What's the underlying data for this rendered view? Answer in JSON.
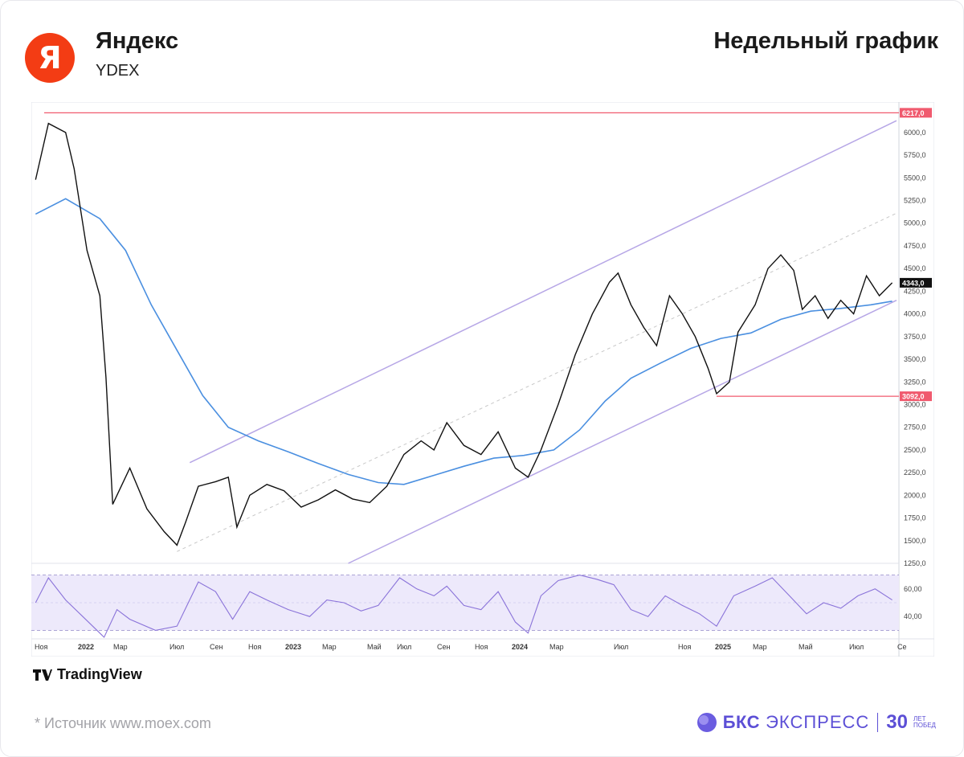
{
  "header": {
    "logo_letter": "Я",
    "company": "Яндекс",
    "ticker": "YDEX",
    "chart_title": "Недельный график"
  },
  "footer": {
    "tradingview": "TradingView",
    "source": "*  Источник www.moex.com",
    "brand_main": "БКС",
    "brand_sub": "ЭКСПРЕСС",
    "brand_years": "30",
    "brand_years_caption": "ЛЕТ ПОБЕД"
  },
  "chart_data": {
    "type": "line",
    "currency": "RUB",
    "price_ylim": [
      1250,
      6300
    ],
    "price_ticks": [
      "1250,0",
      "1500,0",
      "1750,0",
      "2000,0",
      "2250,0",
      "2500,0",
      "2750,0",
      "3000,0",
      "3250,0",
      "3500,0",
      "3750,0",
      "4000,0",
      "4250,0",
      "4500,0",
      "4750,0",
      "5000,0",
      "5250,0",
      "5500,0",
      "5750,0",
      "6000,0"
    ],
    "x_labels": [
      "Ноя",
      "2022",
      "Мар",
      "Июл",
      "Сен",
      "Ноя",
      "2023",
      "Мар",
      "Май",
      "Июл",
      "Сен",
      "Ноя",
      "2024",
      "Мар",
      "Июл",
      "Ноя",
      "2025",
      "Мар",
      "Май",
      "Июл",
      "Се"
    ],
    "current_price": "4343,0",
    "levels": [
      {
        "label": "6217,0",
        "value": 6217,
        "color": "#f05a6e"
      },
      {
        "label": "3092,0",
        "value": 3092,
        "color": "#f05a6e"
      }
    ],
    "price_series": [
      [
        "2021-11-01",
        5480
      ],
      [
        "2021-11-22",
        6100
      ],
      [
        "2021-12-20",
        6000
      ],
      [
        "2022-01-03",
        5600
      ],
      [
        "2022-01-24",
        4700
      ],
      [
        "2022-02-14",
        4200
      ],
      [
        "2022-02-24",
        3300
      ],
      [
        "2022-03-07",
        1900
      ],
      [
        "2022-04-04",
        2300
      ],
      [
        "2022-05-02",
        1850
      ],
      [
        "2022-05-30",
        1600
      ],
      [
        "2022-06-20",
        1450
      ],
      [
        "2022-07-04",
        1700
      ],
      [
        "2022-07-25",
        2100
      ],
      [
        "2022-08-22",
        2150
      ],
      [
        "2022-09-12",
        2200
      ],
      [
        "2022-09-26",
        1650
      ],
      [
        "2022-10-17",
        2000
      ],
      [
        "2022-11-14",
        2120
      ],
      [
        "2022-12-12",
        2050
      ],
      [
        "2023-01-09",
        1870
      ],
      [
        "2023-02-06",
        1950
      ],
      [
        "2023-03-06",
        2060
      ],
      [
        "2023-04-03",
        1960
      ],
      [
        "2023-05-01",
        1920
      ],
      [
        "2023-05-29",
        2100
      ],
      [
        "2023-06-26",
        2450
      ],
      [
        "2023-07-24",
        2600
      ],
      [
        "2023-08-14",
        2500
      ],
      [
        "2023-09-04",
        2800
      ],
      [
        "2023-10-02",
        2550
      ],
      [
        "2023-10-30",
        2450
      ],
      [
        "2023-11-27",
        2700
      ],
      [
        "2023-12-25",
        2300
      ],
      [
        "2024-01-15",
        2200
      ],
      [
        "2024-02-05",
        2500
      ],
      [
        "2024-03-04",
        3000
      ],
      [
        "2024-04-01",
        3550
      ],
      [
        "2024-04-29",
        4000
      ],
      [
        "2024-05-27",
        4350
      ],
      [
        "2024-06-10",
        4450
      ],
      [
        "2024-07-01",
        4100
      ],
      [
        "2024-07-22",
        3850
      ],
      [
        "2024-08-12",
        3650
      ],
      [
        "2024-09-02",
        4200
      ],
      [
        "2024-09-23",
        4000
      ],
      [
        "2024-10-14",
        3750
      ],
      [
        "2024-11-04",
        3400
      ],
      [
        "2024-11-18",
        3120
      ],
      [
        "2024-12-09",
        3250
      ],
      [
        "2024-12-23",
        3800
      ],
      [
        "2025-01-20",
        4100
      ],
      [
        "2025-02-10",
        4500
      ],
      [
        "2025-03-03",
        4650
      ],
      [
        "2025-03-24",
        4480
      ],
      [
        "2025-04-07",
        4050
      ],
      [
        "2025-04-28",
        4200
      ],
      [
        "2025-05-19",
        3950
      ],
      [
        "2025-06-09",
        4150
      ],
      [
        "2025-06-30",
        4000
      ],
      [
        "2025-07-21",
        4420
      ],
      [
        "2025-08-11",
        4200
      ],
      [
        "2025-09-01",
        4343
      ]
    ],
    "sma_series": [
      [
        "2021-11-01",
        5100
      ],
      [
        "2021-12-20",
        5270
      ],
      [
        "2022-02-14",
        5050
      ],
      [
        "2022-03-28",
        4700
      ],
      [
        "2022-05-09",
        4100
      ],
      [
        "2022-06-20",
        3600
      ],
      [
        "2022-08-01",
        3100
      ],
      [
        "2022-09-12",
        2750
      ],
      [
        "2022-10-31",
        2600
      ],
      [
        "2022-12-19",
        2480
      ],
      [
        "2023-02-06",
        2350
      ],
      [
        "2023-03-27",
        2230
      ],
      [
        "2023-05-15",
        2140
      ],
      [
        "2023-06-26",
        2120
      ],
      [
        "2023-08-14",
        2220
      ],
      [
        "2023-10-02",
        2320
      ],
      [
        "2023-11-20",
        2410
      ],
      [
        "2024-01-08",
        2440
      ],
      [
        "2024-02-26",
        2500
      ],
      [
        "2024-04-08",
        2720
      ],
      [
        "2024-05-20",
        3040
      ],
      [
        "2024-07-01",
        3290
      ],
      [
        "2024-08-19",
        3460
      ],
      [
        "2024-10-07",
        3620
      ],
      [
        "2024-11-25",
        3730
      ],
      [
        "2025-01-13",
        3790
      ],
      [
        "2025-03-03",
        3940
      ],
      [
        "2025-04-21",
        4030
      ],
      [
        "2025-06-09",
        4060
      ],
      [
        "2025-07-28",
        4100
      ],
      [
        "2025-09-01",
        4140
      ]
    ],
    "rsi": {
      "ylim": [
        25,
        75
      ],
      "ticks": [
        "40,00",
        "60,00"
      ],
      "band": [
        30,
        70
      ],
      "series": [
        [
          "2021-11-01",
          50
        ],
        [
          "2021-11-22",
          68
        ],
        [
          "2021-12-20",
          52
        ],
        [
          "2022-01-17",
          40
        ],
        [
          "2022-02-21",
          25
        ],
        [
          "2022-03-14",
          45
        ],
        [
          "2022-04-04",
          38
        ],
        [
          "2022-05-16",
          30
        ],
        [
          "2022-06-20",
          33
        ],
        [
          "2022-07-25",
          65
        ],
        [
          "2022-08-22",
          58
        ],
        [
          "2022-09-19",
          38
        ],
        [
          "2022-10-17",
          58
        ],
        [
          "2022-11-14",
          52
        ],
        [
          "2022-12-19",
          45
        ],
        [
          "2023-01-23",
          40
        ],
        [
          "2023-02-20",
          52
        ],
        [
          "2023-03-20",
          50
        ],
        [
          "2023-04-17",
          44
        ],
        [
          "2023-05-15",
          48
        ],
        [
          "2023-06-19",
          68
        ],
        [
          "2023-07-17",
          60
        ],
        [
          "2023-08-14",
          55
        ],
        [
          "2023-09-04",
          62
        ],
        [
          "2023-10-02",
          48
        ],
        [
          "2023-10-30",
          45
        ],
        [
          "2023-11-27",
          58
        ],
        [
          "2023-12-25",
          36
        ],
        [
          "2024-01-15",
          28
        ],
        [
          "2024-02-05",
          55
        ],
        [
          "2024-03-04",
          66
        ],
        [
          "2024-04-08",
          70
        ],
        [
          "2024-05-06",
          67
        ],
        [
          "2024-06-03",
          63
        ],
        [
          "2024-07-01",
          45
        ],
        [
          "2024-07-29",
          40
        ],
        [
          "2024-08-26",
          55
        ],
        [
          "2024-09-23",
          48
        ],
        [
          "2024-10-21",
          42
        ],
        [
          "2024-11-18",
          33
        ],
        [
          "2024-12-16",
          55
        ],
        [
          "2025-01-20",
          62
        ],
        [
          "2025-02-17",
          68
        ],
        [
          "2025-03-17",
          55
        ],
        [
          "2025-04-14",
          42
        ],
        [
          "2025-05-12",
          50
        ],
        [
          "2025-06-09",
          46
        ],
        [
          "2025-07-07",
          55
        ],
        [
          "2025-08-04",
          60
        ],
        [
          "2025-09-01",
          52
        ]
      ]
    },
    "channel": {
      "upper": [
        [
          "2022-07-11",
          2360
        ],
        [
          "2025-09-08",
          6130
        ]
      ],
      "lower": [
        [
          "2023-03-27",
          1250
        ],
        [
          "2025-09-08",
          4150
        ]
      ],
      "mid": [
        [
          "2022-06-20",
          1380
        ],
        [
          "2025-09-08",
          5110
        ]
      ]
    }
  }
}
